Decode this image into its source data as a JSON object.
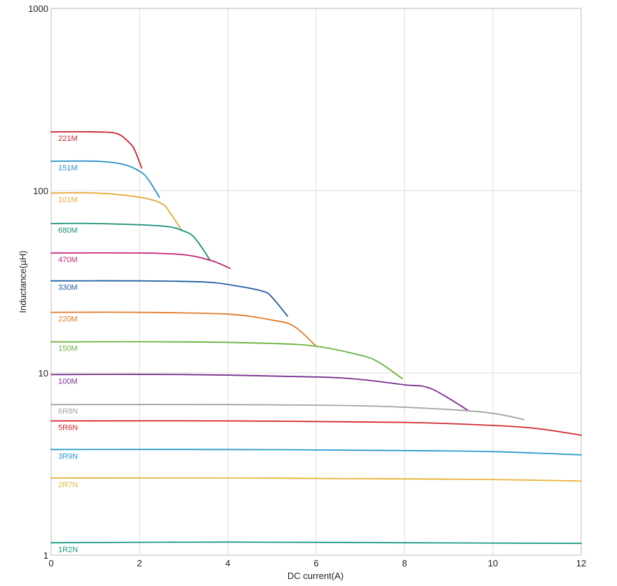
{
  "chart_data": {
    "type": "line",
    "xlabel": "DC current(A)",
    "ylabel": "Inductance(µH)",
    "xlim": [
      0,
      12
    ],
    "ylim": [
      1,
      1000
    ],
    "y_scale": "log",
    "grid": true,
    "legend": "inline labels",
    "x_ticks": [
      "0",
      "2",
      "4",
      "6",
      "8",
      "10",
      "12"
    ],
    "y_ticks": [
      "1",
      "10",
      "100",
      "1000"
    ],
    "series": [
      {
        "name": "221M",
        "color": "#c8232c",
        "points": [
          [
            0,
            210
          ],
          [
            1,
            210
          ],
          [
            1.5,
            205
          ],
          [
            1.8,
            180
          ],
          [
            1.9,
            165
          ],
          [
            2.05,
            133
          ]
        ]
      },
      {
        "name": "151M",
        "color": "#2a8fc7",
        "points": [
          [
            0,
            145
          ],
          [
            1,
            145
          ],
          [
            1.6,
            140
          ],
          [
            2.0,
            128
          ],
          [
            2.2,
            115
          ],
          [
            2.45,
            92
          ]
        ]
      },
      {
        "name": "101M",
        "color": "#e3a530",
        "points": [
          [
            0,
            97
          ],
          [
            1,
            97
          ],
          [
            2.0,
            92
          ],
          [
            2.5,
            85
          ],
          [
            2.7,
            75
          ],
          [
            2.95,
            61
          ]
        ]
      },
      {
        "name": "680M",
        "color": "#1a8f78",
        "points": [
          [
            0,
            66
          ],
          [
            1,
            66
          ],
          [
            2.5,
            64
          ],
          [
            3.0,
            60
          ],
          [
            3.25,
            55
          ],
          [
            3.6,
            41.5
          ]
        ]
      },
      {
        "name": "470M",
        "color": "#c42379",
        "points": [
          [
            0,
            45.5
          ],
          [
            2,
            45.5
          ],
          [
            3.0,
            44.5
          ],
          [
            3.6,
            41.5
          ],
          [
            4.05,
            37.5
          ]
        ]
      },
      {
        "name": "330M",
        "color": "#1f5fa0",
        "points": [
          [
            0,
            32
          ],
          [
            2,
            32
          ],
          [
            3.5,
            31.5
          ],
          [
            4.2,
            30
          ],
          [
            4.8,
            28
          ],
          [
            5.0,
            26
          ],
          [
            5.35,
            20.5
          ]
        ]
      },
      {
        "name": "220M",
        "color": "#e07b28",
        "points": [
          [
            0,
            21.5
          ],
          [
            2,
            21.5
          ],
          [
            4.0,
            21
          ],
          [
            5.0,
            19.5
          ],
          [
            5.5,
            18
          ],
          [
            6.0,
            14
          ]
        ]
      },
      {
        "name": "150M",
        "color": "#6ab23d",
        "points": [
          [
            0,
            14.8
          ],
          [
            3,
            14.8
          ],
          [
            5.0,
            14.5
          ],
          [
            6.0,
            14
          ],
          [
            7.0,
            12.5
          ],
          [
            7.4,
            11.5
          ],
          [
            7.95,
            9.3
          ]
        ]
      },
      {
        "name": "100M",
        "color": "#7b2f8e",
        "points": [
          [
            0,
            9.8
          ],
          [
            3,
            9.8
          ],
          [
            6.0,
            9.5
          ],
          [
            7.0,
            9.2
          ],
          [
            8.0,
            8.6
          ],
          [
            8.6,
            8.2
          ],
          [
            9.45,
            6.2
          ]
        ]
      },
      {
        "name": "6R8N",
        "color": "#a3a3a3",
        "points": [
          [
            0,
            6.7
          ],
          [
            4,
            6.7
          ],
          [
            7.0,
            6.6
          ],
          [
            9.0,
            6.3
          ],
          [
            10.0,
            6.0
          ],
          [
            10.7,
            5.55
          ]
        ]
      },
      {
        "name": "5R6N",
        "color": "#d42830",
        "points": [
          [
            0,
            5.45
          ],
          [
            4,
            5.45
          ],
          [
            8.0,
            5.35
          ],
          [
            10.0,
            5.15
          ],
          [
            11.0,
            4.95
          ],
          [
            12.0,
            4.55
          ]
        ]
      },
      {
        "name": "3R9N",
        "color": "#2b9bd0",
        "points": [
          [
            0,
            3.8
          ],
          [
            4,
            3.8
          ],
          [
            8.0,
            3.75
          ],
          [
            10.0,
            3.7
          ],
          [
            12.0,
            3.55
          ]
        ]
      },
      {
        "name": "2R7N",
        "color": "#e9b33c",
        "points": [
          [
            0,
            2.65
          ],
          [
            4,
            2.65
          ],
          [
            8.0,
            2.62
          ],
          [
            10.0,
            2.6
          ],
          [
            12.0,
            2.55
          ]
        ]
      },
      {
        "name": "1R2N",
        "color": "#1c9a80",
        "points": [
          [
            0,
            1.17
          ],
          [
            4,
            1.18
          ],
          [
            8.0,
            1.17
          ],
          [
            12.0,
            1.16
          ]
        ]
      }
    ]
  }
}
